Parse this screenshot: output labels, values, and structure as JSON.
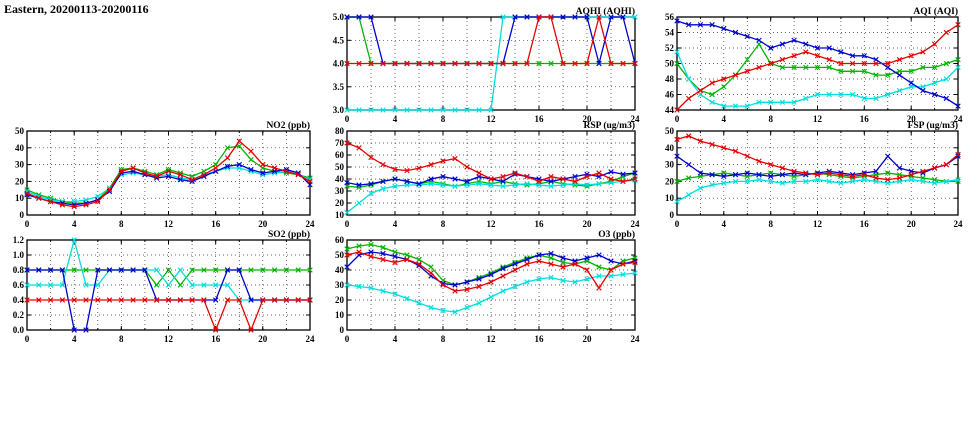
{
  "page": {
    "title": "Eastern, 20200113-20200116"
  },
  "colors": {
    "red": "#e60000",
    "green": "#00b400",
    "blue": "#0000cd",
    "cyan": "#00dede"
  },
  "x_hours": [
    0,
    1,
    2,
    3,
    4,
    5,
    6,
    7,
    8,
    9,
    10,
    11,
    12,
    13,
    14,
    15,
    16,
    17,
    18,
    19,
    20,
    21,
    22,
    23,
    24
  ],
  "chart_data": [
    {
      "id": "aqhi",
      "type": "line",
      "title": "AQHI (AQHI)",
      "xlim": [
        0,
        24
      ],
      "xticks": [
        0,
        4,
        8,
        12,
        16,
        20,
        24
      ],
      "ylim": [
        3.0,
        5.0
      ],
      "yticks": [
        3.0,
        3.5,
        4.0,
        4.5,
        5.0
      ],
      "ydec": 1,
      "grid": true,
      "legend": "none",
      "series": [
        {
          "name": "green",
          "color": "#00b400",
          "values": [
            5,
            5,
            4,
            4,
            4,
            4,
            4,
            4,
            4,
            4,
            4,
            4,
            4,
            4,
            4,
            4,
            4,
            4,
            4,
            4,
            4,
            4,
            4,
            4,
            4
          ]
        },
        {
          "name": "cyan",
          "color": "#00dede",
          "values": [
            3,
            3,
            3,
            3,
            3,
            3,
            3,
            3,
            3,
            3,
            3,
            3,
            3,
            5,
            5,
            5,
            5,
            5,
            5,
            5,
            5,
            5,
            5,
            5,
            5
          ]
        },
        {
          "name": "blue",
          "color": "#0000cd",
          "values": [
            5,
            5,
            5,
            4,
            4,
            4,
            4,
            4,
            4,
            4,
            4,
            4,
            4,
            4,
            5,
            5,
            5,
            5,
            5,
            5,
            5,
            4,
            5,
            5,
            4
          ]
        },
        {
          "name": "red",
          "color": "#e60000",
          "values": [
            4,
            4,
            4,
            4,
            4,
            4,
            4,
            4,
            4,
            4,
            4,
            4,
            4,
            4,
            4,
            4,
            5,
            5,
            4,
            4,
            4,
            5,
            4,
            4,
            4
          ]
        }
      ]
    },
    {
      "id": "aqi",
      "type": "line",
      "title": "AQI (AQI)",
      "xlim": [
        0,
        24
      ],
      "xticks": [
        0,
        4,
        8,
        12,
        16,
        20,
        24
      ],
      "ylim": [
        44,
        56
      ],
      "yticks": [
        44,
        46,
        48,
        50,
        52,
        54,
        56
      ],
      "ydec": 0,
      "grid": true,
      "legend": "none",
      "series": [
        {
          "name": "green",
          "color": "#00b400",
          "values": [
            50,
            48,
            46.5,
            46,
            47,
            48.5,
            50.5,
            52.5,
            50,
            49.5,
            49.5,
            49.5,
            49.5,
            49.5,
            49,
            49,
            49,
            48.5,
            48.5,
            49,
            49,
            49.5,
            49.5,
            50,
            50.5
          ]
        },
        {
          "name": "cyan",
          "color": "#00dede",
          "values": [
            51.5,
            48,
            46,
            45,
            44.5,
            44.5,
            44.5,
            45,
            45,
            45,
            45,
            45.5,
            46,
            46,
            46,
            46,
            45.5,
            45.5,
            46,
            46.5,
            47,
            47,
            47.5,
            48,
            49.5
          ]
        },
        {
          "name": "blue",
          "color": "#0000cd",
          "values": [
            55.5,
            55,
            55,
            55,
            54.5,
            54,
            53.5,
            53,
            52,
            52.5,
            53,
            52.5,
            52,
            52,
            51.5,
            51,
            51,
            50.5,
            49.5,
            48.5,
            47.5,
            46.5,
            46,
            45.5,
            44.5
          ]
        },
        {
          "name": "red",
          "color": "#e60000",
          "values": [
            44,
            45.5,
            46.5,
            47.5,
            48,
            48.5,
            49,
            49.5,
            50,
            50.5,
            51,
            51.5,
            51,
            50.5,
            50,
            50,
            50,
            50,
            50,
            50.5,
            51,
            51.5,
            52.5,
            54,
            55
          ]
        }
      ]
    },
    {
      "id": "no2",
      "type": "line",
      "title": "NO2 (ppb)",
      "xlim": [
        0,
        24
      ],
      "xticks": [
        0,
        4,
        8,
        12,
        16,
        20,
        24
      ],
      "ylim": [
        0,
        50
      ],
      "yticks": [
        0,
        10,
        20,
        30,
        40,
        50
      ],
      "ydec": 0,
      "grid": true,
      "legend": "none",
      "series": [
        {
          "name": "green",
          "color": "#00b400",
          "values": [
            15,
            12,
            10,
            8,
            7,
            7,
            9,
            16,
            27,
            28,
            26,
            24,
            27,
            25,
            23,
            26,
            30,
            40,
            41,
            33,
            28,
            26,
            25,
            24,
            22
          ]
        },
        {
          "name": "cyan",
          "color": "#00dede",
          "values": [
            14,
            11,
            9,
            8,
            8,
            9,
            11,
            16,
            24,
            25,
            24,
            23,
            24,
            22,
            21,
            24,
            26,
            28,
            28,
            26,
            24,
            25,
            26,
            24,
            21
          ]
        },
        {
          "name": "blue",
          "color": "#0000cd",
          "values": [
            12,
            10,
            8,
            7,
            6,
            7,
            9,
            14,
            25,
            26,
            24,
            22,
            23,
            21,
            20,
            23,
            26,
            29,
            30,
            27,
            25,
            26,
            27,
            25,
            18
          ]
        },
        {
          "name": "red",
          "color": "#e60000",
          "values": [
            13,
            10,
            8,
            6,
            5,
            6,
            8,
            15,
            26,
            28,
            25,
            23,
            26,
            24,
            21,
            24,
            28,
            34,
            44,
            38,
            30,
            28,
            26,
            24,
            20
          ]
        }
      ]
    },
    {
      "id": "rsp",
      "type": "line",
      "title": "RSP (ug/m3)",
      "xlim": [
        0,
        24
      ],
      "xticks": [
        0,
        4,
        8,
        12,
        16,
        20,
        24
      ],
      "ylim": [
        10,
        80
      ],
      "yticks": [
        10,
        20,
        30,
        40,
        50,
        60,
        70,
        80
      ],
      "ydec": 0,
      "grid": true,
      "legend": "none",
      "series": [
        {
          "name": "green",
          "color": "#00b400",
          "values": [
            34,
            33,
            35,
            38,
            40,
            38,
            36,
            38,
            36,
            34,
            36,
            38,
            36,
            38,
            36,
            35,
            36,
            38,
            36,
            35,
            34,
            36,
            38,
            42,
            45
          ]
        },
        {
          "name": "cyan",
          "color": "#00dede",
          "values": [
            12,
            20,
            28,
            32,
            34,
            35,
            35,
            36,
            35,
            34,
            35,
            36,
            35,
            34,
            35,
            36,
            35,
            34,
            35,
            36,
            35,
            36,
            37,
            38,
            39
          ]
        },
        {
          "name": "blue",
          "color": "#0000cd",
          "values": [
            37,
            35,
            36,
            38,
            40,
            38,
            36,
            40,
            42,
            40,
            38,
            42,
            40,
            38,
            44,
            42,
            40,
            38,
            40,
            42,
            44,
            42,
            46,
            44,
            45
          ]
        },
        {
          "name": "red",
          "color": "#e60000",
          "values": [
            70,
            66,
            58,
            52,
            48,
            47,
            49,
            52,
            55,
            57,
            50,
            45,
            40,
            42,
            45,
            42,
            38,
            42,
            40,
            38,
            42,
            45,
            40,
            38,
            40
          ]
        }
      ]
    },
    {
      "id": "fsp",
      "type": "line",
      "title": "FSP (ug/m3)",
      "xlim": [
        0,
        24
      ],
      "xticks": [
        0,
        4,
        8,
        12,
        16,
        20,
        24
      ],
      "ylim": [
        0,
        50
      ],
      "yticks": [
        0,
        10,
        20,
        30,
        40,
        50
      ],
      "ydec": 0,
      "grid": true,
      "legend": "none",
      "series": [
        {
          "name": "green",
          "color": "#00b400",
          "values": [
            20,
            22,
            23,
            24,
            25,
            24,
            23,
            24,
            25,
            24,
            23,
            24,
            25,
            24,
            23,
            22,
            23,
            24,
            25,
            24,
            23,
            22,
            21,
            20,
            20
          ]
        },
        {
          "name": "cyan",
          "color": "#00dede",
          "values": [
            8,
            12,
            16,
            18,
            19,
            20,
            20,
            21,
            20,
            19,
            20,
            20,
            21,
            20,
            19,
            20,
            21,
            20,
            19,
            20,
            21,
            20,
            19,
            20,
            21
          ]
        },
        {
          "name": "blue",
          "color": "#0000cd",
          "values": [
            35,
            30,
            25,
            24,
            23,
            24,
            25,
            24,
            23,
            24,
            25,
            24,
            25,
            26,
            25,
            24,
            25,
            26,
            35,
            28,
            26,
            25,
            28,
            30,
            35
          ]
        },
        {
          "name": "red",
          "color": "#e60000",
          "values": [
            45,
            47,
            44,
            42,
            40,
            38,
            35,
            32,
            30,
            28,
            26,
            25,
            24,
            25,
            24,
            23,
            24,
            22,
            21,
            22,
            24,
            26,
            28,
            30,
            36
          ]
        }
      ]
    },
    {
      "id": "so2",
      "type": "line",
      "title": "SO2 (ppb)",
      "xlim": [
        0,
        24
      ],
      "xticks": [
        0,
        4,
        8,
        12,
        16,
        20,
        24
      ],
      "ylim": [
        0,
        1.2
      ],
      "yticks": [
        0,
        0.2,
        0.4,
        0.6,
        0.8,
        1.0,
        1.2
      ],
      "ydec": 1,
      "grid": true,
      "legend": "none",
      "series": [
        {
          "name": "green",
          "color": "#00b400",
          "values": [
            0.8,
            0.8,
            0.8,
            0.8,
            0.8,
            0.8,
            0.8,
            0.8,
            0.8,
            0.8,
            0.8,
            0.6,
            0.8,
            0.6,
            0.8,
            0.8,
            0.8,
            0.8,
            0.8,
            0.8,
            0.8,
            0.8,
            0.8,
            0.8,
            0.8
          ]
        },
        {
          "name": "cyan",
          "color": "#00dede",
          "values": [
            0.6,
            0.6,
            0.6,
            0.6,
            1.2,
            0.6,
            0.6,
            0.8,
            0.8,
            0.8,
            0.8,
            0.8,
            0.6,
            0.8,
            0.6,
            0.6,
            0.6,
            0.6,
            0.4,
            0.4,
            0.4,
            0.4,
            0.4,
            0.4,
            0.4
          ]
        },
        {
          "name": "blue",
          "color": "#0000cd",
          "values": [
            0.8,
            0.8,
            0.8,
            0.8,
            0,
            0,
            0.8,
            0.8,
            0.8,
            0.8,
            0.8,
            0.4,
            0.4,
            0.4,
            0.4,
            0.4,
            0.4,
            0.8,
            0.8,
            0.4,
            0.4,
            0.4,
            0.4,
            0.4,
            0.4
          ]
        },
        {
          "name": "red",
          "color": "#e60000",
          "values": [
            0.4,
            0.4,
            0.4,
            0.4,
            0.4,
            0.4,
            0.4,
            0.4,
            0.4,
            0.4,
            0.4,
            0.4,
            0.4,
            0.4,
            0.4,
            0.4,
            0,
            0.4,
            0.4,
            0,
            0.4,
            0.4,
            0.4,
            0.4,
            0.4
          ]
        }
      ]
    },
    {
      "id": "o3",
      "type": "line",
      "title": "O3 (ppb)",
      "xlim": [
        0,
        24
      ],
      "xticks": [
        0,
        4,
        8,
        12,
        16,
        20,
        24
      ],
      "ylim": [
        0,
        60
      ],
      "yticks": [
        0,
        10,
        20,
        30,
        40,
        50,
        60
      ],
      "ydec": 0,
      "grid": true,
      "legend": "none",
      "series": [
        {
          "name": "green",
          "color": "#00b400",
          "values": [
            54,
            56,
            57,
            55,
            52,
            50,
            47,
            42,
            33,
            30,
            32,
            35,
            38,
            42,
            45,
            48,
            50,
            48,
            45,
            44,
            46,
            42,
            40,
            46,
            48
          ]
        },
        {
          "name": "cyan",
          "color": "#00dede",
          "values": [
            30,
            29,
            28,
            26,
            24,
            21,
            18,
            15,
            13,
            12,
            15,
            18,
            22,
            26,
            29,
            32,
            34,
            35,
            33,
            32,
            34,
            36,
            36,
            37,
            38
          ]
        },
        {
          "name": "blue",
          "color": "#0000cd",
          "values": [
            42,
            50,
            52,
            51,
            49,
            47,
            43,
            36,
            31,
            30,
            32,
            34,
            37,
            41,
            44,
            47,
            50,
            51,
            48,
            46,
            48,
            50,
            46,
            44,
            46
          ]
        },
        {
          "name": "red",
          "color": "#e60000",
          "values": [
            50,
            52,
            49,
            47,
            45,
            47,
            44,
            38,
            30,
            26,
            27,
            29,
            32,
            36,
            40,
            44,
            46,
            44,
            42,
            44,
            40,
            28,
            40,
            44,
            45
          ]
        }
      ]
    }
  ]
}
